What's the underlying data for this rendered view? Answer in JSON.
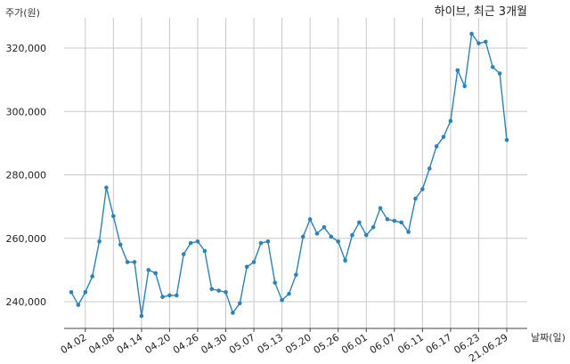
{
  "chart_data": {
    "type": "line",
    "title": "하이브, 최근 3개월",
    "ylabel": "주가(원)",
    "xlabel": "날짜(일)",
    "ylim": [
      230000,
      330000
    ],
    "yticks": [
      240000,
      260000,
      280000,
      300000,
      320000
    ],
    "ytick_labels": [
      "240,000",
      "260,000",
      "280,000",
      "300,000",
      "320,000"
    ],
    "x_tick_labels": [
      "04.02",
      "04.08",
      "04.14",
      "04.20",
      "04.26",
      "04.30",
      "05.07",
      "05.13",
      "05.20",
      "05.26",
      "06.01",
      "06.07",
      "06.11",
      "06.17",
      "06.23",
      "21.06.29"
    ],
    "x_tick_indices": [
      2,
      6,
      10,
      14,
      18,
      22,
      26,
      30,
      34,
      38,
      42,
      46,
      50,
      54,
      58,
      62
    ],
    "grid": true,
    "color": "#2b83ba",
    "series": [
      {
        "values": [
          243000,
          239000,
          243000,
          248000,
          259000,
          276000,
          267000,
          258000,
          252500,
          252500,
          235500,
          250000,
          249000,
          241500,
          242000,
          242000,
          255000,
          258500,
          259000,
          256000,
          244000,
          243500,
          243000,
          236500,
          239500,
          251000,
          252500,
          258500,
          259000,
          246000,
          240500,
          242500,
          248500,
          260500,
          266000,
          261500,
          263500,
          260500,
          259000,
          253000,
          261000,
          265000,
          261000,
          263500,
          269500,
          266000,
          265500,
          265000,
          262000,
          272500,
          275500,
          282000,
          289000,
          292000,
          297000,
          313000,
          308000,
          324500,
          321500,
          322000,
          314000,
          312000,
          291000
        ]
      }
    ]
  }
}
